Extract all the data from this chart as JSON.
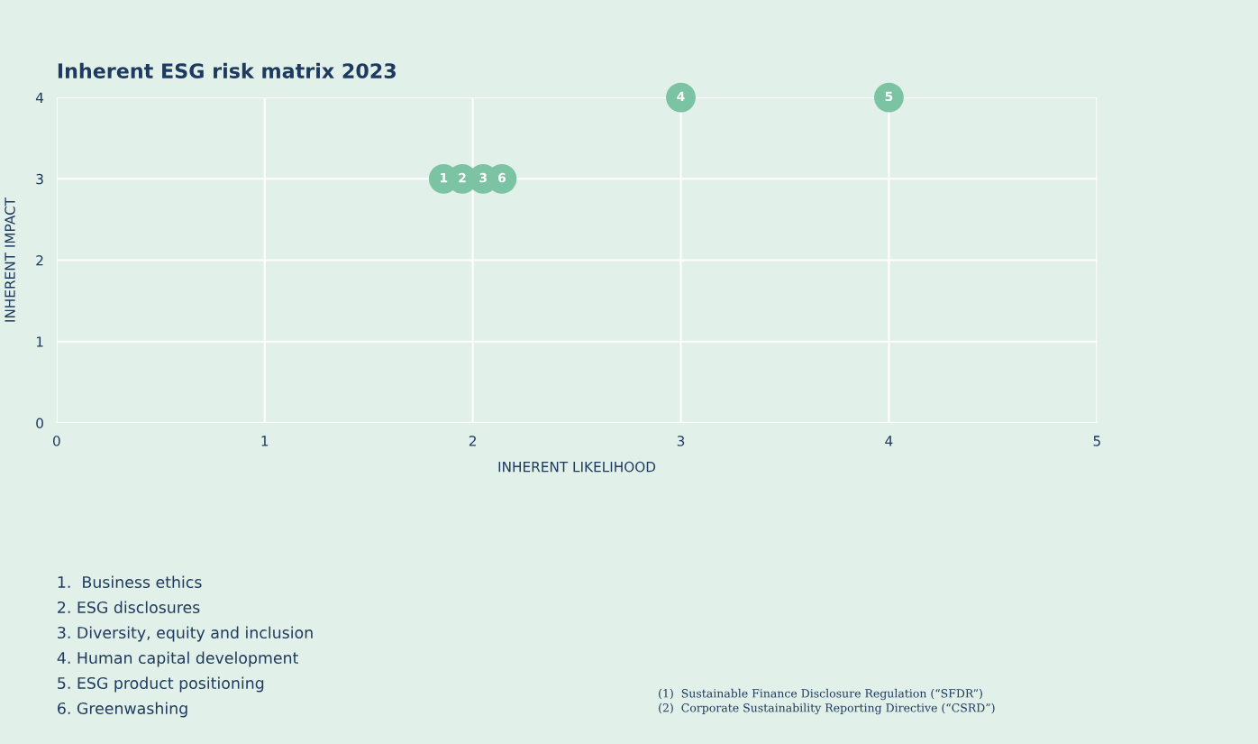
{
  "chart_data": {
    "type": "scatter",
    "title": "Inherent ESG risk matrix 2023",
    "xlabel": "INHERENT LIKELIHOOD",
    "ylabel": "INHERENT IMPACT",
    "series": [
      {
        "color": "#7cc3a3",
        "x": [
          1.86,
          1.95,
          2.05,
          2.14,
          3,
          4
        ],
        "values": [
          3,
          3,
          3,
          3,
          4,
          4
        ]
      }
    ],
    "xlim": [
      0,
      5
    ],
    "ylim": [
      0,
      4
    ],
    "xticks": [
      0,
      1,
      2,
      3,
      4,
      5
    ],
    "yticks": [
      0,
      1,
      2,
      3,
      4
    ],
    "grid": true,
    "marker": "circle",
    "annotations": [
      {
        "text": "1",
        "x": 1.86,
        "y": 3
      },
      {
        "text": "2",
        "x": 1.95,
        "y": 3
      },
      {
        "text": "3",
        "x": 2.05,
        "y": 3
      },
      {
        "text": "6",
        "x": 2.14,
        "y": 3
      },
      {
        "text": "4",
        "x": 3,
        "y": 4
      },
      {
        "text": "5",
        "x": 4,
        "y": 4
      },
      "1.  Business ethics",
      "2. ESG disclosures",
      "3. Diversity, equity and inclusion",
      "4. Human capital development",
      "5. ESG product positioning",
      "6. Greenwashing",
      "(1)  Sustainable Finance Disclosure Regulation (“SFDR”)",
      "(2)  Corporate Sustainability Reporting Directive (“CSRD”)"
    ]
  }
}
